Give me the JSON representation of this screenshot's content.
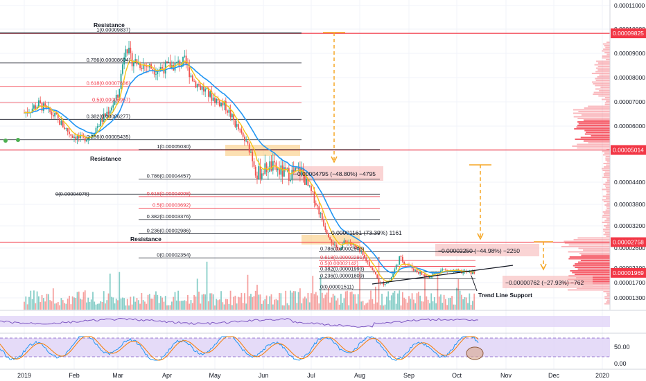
{
  "colors": {
    "up": "#26a69a",
    "down": "#ef5350",
    "resistance": "#f23645",
    "ema_fast": "#f5c518",
    "ema_slow": "#2196f3",
    "fib_black": "#131722",
    "fib_red": "#f23645",
    "orange": "#f5a623",
    "osc_fill": "#e1d5f7",
    "osc_line": "#7e57c2"
  },
  "chart_data": {
    "type": "candlestick",
    "title": "",
    "y_scale": "linear",
    "ylim": [
      1.06e-05,
      0.0001126
    ],
    "price_ticks": [
      "0.00011000",
      "0.00010000",
      "0.00009000",
      "0.00008000",
      "0.00007000",
      "0.00006000",
      "0.00005000",
      "0.00004400",
      "0.00003800",
      "0.00003200",
      "0.00002600",
      "0.00002100",
      "0.00001700",
      "0.00001300"
    ],
    "time_ticks": [
      "2019",
      "Feb",
      "Mar",
      "Apr",
      "May",
      "Jun",
      "Jul",
      "Aug",
      "Sep",
      "Oct",
      "Nov",
      "Dec",
      "2020"
    ],
    "price_badges": [
      "0.00009825",
      "0.00005014",
      "0.00002758",
      "0.00001969"
    ],
    "resistance_levels": [
      {
        "label": "Resistance",
        "price": 9.825e-05
      },
      {
        "label": "Resistance",
        "price": 5.014e-05
      },
      {
        "label": "Resistance",
        "price": 2.758e-05
      }
    ],
    "fib_retracements": [
      {
        "name": "fib-1",
        "levels": [
          {
            "label": "1(0.00009837)",
            "price": 9.837e-05,
            "color": "black"
          },
          {
            "label": "0.786(0.00008604)",
            "price": 8.604e-05,
            "color": "black"
          },
          {
            "label": "0.618(0.00007636)",
            "price": 7.636e-05,
            "color": "red"
          },
          {
            "label": "0.5(0.00006957)",
            "price": 6.957e-05,
            "color": "red"
          },
          {
            "label": "0.382(0.00006277)",
            "price": 6.277e-05,
            "color": "black"
          },
          {
            "label": "0.236(0.00005435)",
            "price": 5.435e-05,
            "color": "black"
          }
        ]
      },
      {
        "name": "fib-2",
        "levels": [
          {
            "label": "1(0.00005030)",
            "price": 5.03e-05,
            "color": "black"
          },
          {
            "label": "0.786(0.00004457)",
            "price": 4.457e-05,
            "color": "black"
          },
          {
            "label": "0.618(0.00004008)",
            "price": 4.008e-05,
            "color": "red"
          },
          {
            "label": "0.5(0.00003692)",
            "price": 3.692e-05,
            "color": "red"
          },
          {
            "label": "0.382(0.00003376)",
            "price": 3.376e-05,
            "color": "black"
          },
          {
            "label": "0.236(0.00002986)",
            "price": 2.986e-05,
            "color": "black"
          },
          {
            "label": "0(0.00002354)",
            "price": 2.354e-05,
            "color": "black"
          }
        ]
      },
      {
        "name": "fib-3",
        "levels": [
          {
            "label": "0.786(0.00002503)",
            "price": 2.503e-05,
            "color": "black"
          },
          {
            "label": "0.618(0.00002291)",
            "price": 2.291e-05,
            "color": "red"
          },
          {
            "label": "0.5(0.00002142)",
            "price": 2.142e-05,
            "color": "red"
          },
          {
            "label": "0.382(0.00001993)",
            "price": 1.993e-05,
            "color": "black"
          },
          {
            "label": "0.236(0.00001809)",
            "price": 1.809e-05,
            "color": "black"
          },
          {
            "label": "0(0.00001511)",
            "price": 1.511e-05,
            "color": "black"
          }
        ]
      }
    ],
    "fib_zero_label": "0(0.00004076)",
    "price_changes": [
      {
        "text": "−0.00004795 (−48.80%) −4795"
      },
      {
        "text": "0.00001161 (73.39%) 1161"
      },
      {
        "text": "−0.00002250 (−44.98%) −2250"
      },
      {
        "text": "−0.00000762 (−27.93%) −762"
      }
    ],
    "annotations": [
      "Trend Line Support"
    ],
    "path_points": [
      {
        "d": "2019-01-01",
        "p": 6.55e-05
      },
      {
        "d": "2019-01-10",
        "p": 6.9e-05
      },
      {
        "d": "2019-01-20",
        "p": 6.4e-05
      },
      {
        "d": "2019-01-30",
        "p": 5.65e-05
      },
      {
        "d": "2019-02-06",
        "p": 5.45e-05
      },
      {
        "d": "2019-02-12",
        "p": 5.65e-05
      },
      {
        "d": "2019-02-22",
        "p": 6.55e-05
      },
      {
        "d": "2019-03-01",
        "p": 7.2e-05
      },
      {
        "d": "2019-03-06",
        "p": 9.45e-05
      },
      {
        "d": "2019-03-09",
        "p": 8.75e-05
      },
      {
        "d": "2019-03-16",
        "p": 8.55e-05
      },
      {
        "d": "2019-03-25",
        "p": 8.35e-05
      },
      {
        "d": "2019-04-05",
        "p": 8.5e-05
      },
      {
        "d": "2019-04-12",
        "p": 8.65e-05
      },
      {
        "d": "2019-04-18",
        "p": 7.85e-05
      },
      {
        "d": "2019-04-28",
        "p": 7.25e-05
      },
      {
        "d": "2019-05-08",
        "p": 6.8e-05
      },
      {
        "d": "2019-05-20",
        "p": 5.4e-05
      },
      {
        "d": "2019-05-28",
        "p": 4.55e-05
      },
      {
        "d": "2019-06-05",
        "p": 4.7e-05
      },
      {
        "d": "2019-06-15",
        "p": 4.55e-05
      },
      {
        "d": "2019-06-25",
        "p": 4.6e-05
      },
      {
        "d": "2019-07-03",
        "p": 3.95e-05
      },
      {
        "d": "2019-07-10",
        "p": 3.15e-05
      },
      {
        "d": "2019-07-17",
        "p": 2.55e-05
      },
      {
        "d": "2019-07-24",
        "p": 2.8e-05
      },
      {
        "d": "2019-08-01",
        "p": 2.5e-05
      },
      {
        "d": "2019-08-08",
        "p": 2.15e-05
      },
      {
        "d": "2019-08-14",
        "p": 1.65e-05
      },
      {
        "d": "2019-08-20",
        "p": 1.75e-05
      },
      {
        "d": "2019-08-26",
        "p": 2.35e-05
      },
      {
        "d": "2019-09-03",
        "p": 2.1e-05
      },
      {
        "d": "2019-09-12",
        "p": 1.85e-05
      },
      {
        "d": "2019-09-22",
        "p": 2.05e-05
      },
      {
        "d": "2019-10-02",
        "p": 2e-05
      },
      {
        "d": "2019-10-12",
        "p": 1.97e-05
      }
    ],
    "oscillator_ticks": [
      "50.00",
      "0.00"
    ]
  }
}
